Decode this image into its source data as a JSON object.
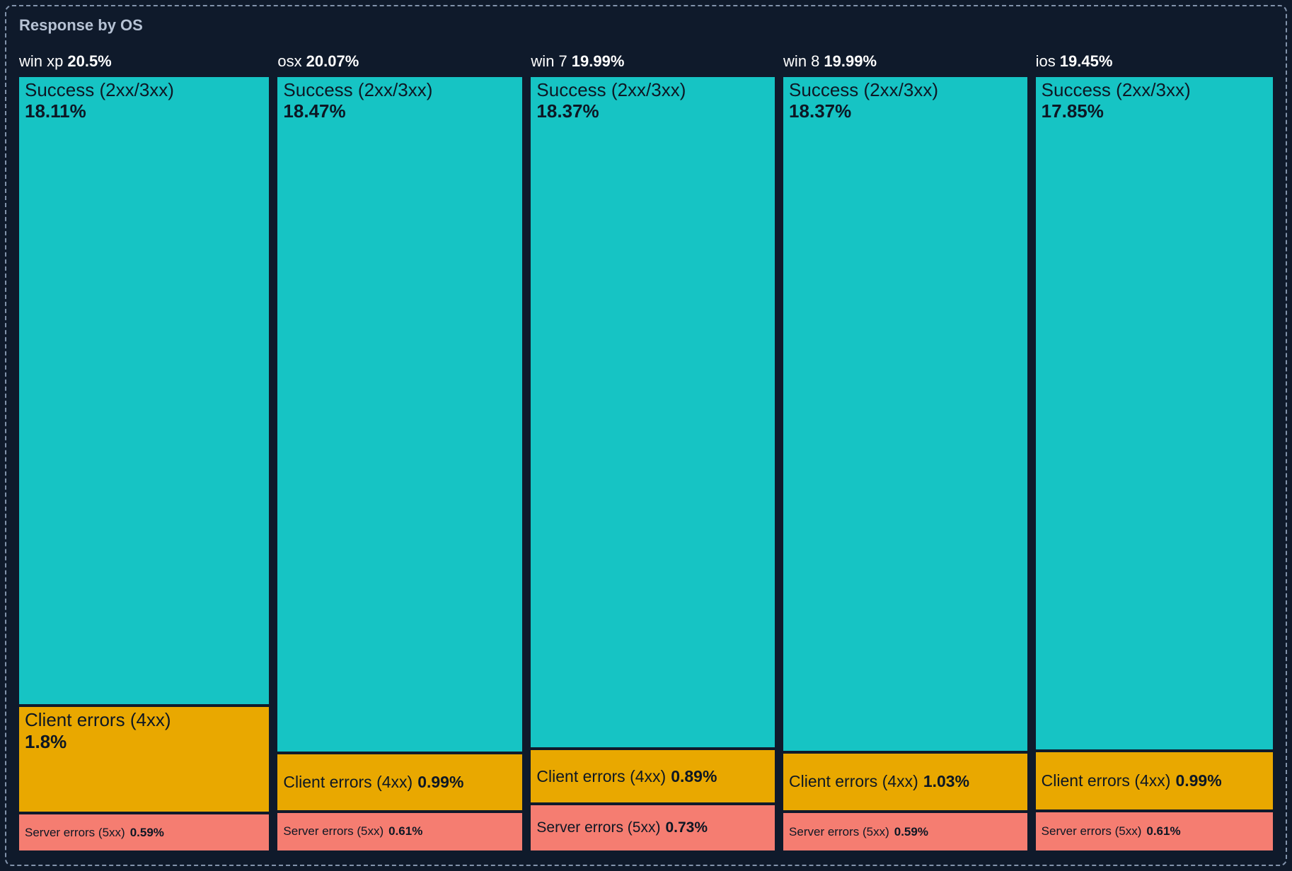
{
  "panel": {
    "title": "Response by OS"
  },
  "colors": {
    "background": "#0f1a2b",
    "panel_border": "#8293ab",
    "title_text": "#b6c2d4",
    "header_text": "#ffffff",
    "label_text": "#0d1724",
    "success": "#16c4c4",
    "client_errors": "#e9a800",
    "server_errors": "#f57d71"
  },
  "chart_data": {
    "type": "treemap",
    "title": "Response by OS",
    "group_by": "OS",
    "unit": "%",
    "legend": false,
    "columns": [
      {
        "os": "win xp",
        "total": 20.5,
        "total_label": "20.5%",
        "segments": [
          {
            "label": "Success (2xx/3xx)",
            "value": 18.11,
            "value_label": "18.11%",
            "color": "#16c4c4"
          },
          {
            "label": "Client errors (4xx)",
            "value": 1.8,
            "value_label": "1.8%",
            "color": "#e9a800"
          },
          {
            "label": "Server errors (5xx)",
            "value": 0.59,
            "value_label": "0.59%",
            "color": "#f57d71"
          }
        ]
      },
      {
        "os": "osx",
        "total": 20.07,
        "total_label": "20.07%",
        "segments": [
          {
            "label": "Success (2xx/3xx)",
            "value": 18.47,
            "value_label": "18.47%",
            "color": "#16c4c4"
          },
          {
            "label": "Client errors (4xx)",
            "value": 0.99,
            "value_label": "0.99%",
            "color": "#e9a800"
          },
          {
            "label": "Server errors (5xx)",
            "value": 0.61,
            "value_label": "0.61%",
            "color": "#f57d71"
          }
        ]
      },
      {
        "os": "win 7",
        "total": 19.99,
        "total_label": "19.99%",
        "segments": [
          {
            "label": "Success (2xx/3xx)",
            "value": 18.37,
            "value_label": "18.37%",
            "color": "#16c4c4"
          },
          {
            "label": "Client errors (4xx)",
            "value": 0.89,
            "value_label": "0.89%",
            "color": "#e9a800"
          },
          {
            "label": "Server errors (5xx)",
            "value": 0.73,
            "value_label": "0.73%",
            "color": "#f57d71"
          }
        ]
      },
      {
        "os": "win 8",
        "total": 19.99,
        "total_label": "19.99%",
        "segments": [
          {
            "label": "Success (2xx/3xx)",
            "value": 18.37,
            "value_label": "18.37%",
            "color": "#16c4c4"
          },
          {
            "label": "Client errors (4xx)",
            "value": 1.03,
            "value_label": "1.03%",
            "color": "#e9a800"
          },
          {
            "label": "Server errors (5xx)",
            "value": 0.59,
            "value_label": "0.59%",
            "color": "#f57d71"
          }
        ]
      },
      {
        "os": "ios",
        "total": 19.45,
        "total_label": "19.45%",
        "segments": [
          {
            "label": "Success (2xx/3xx)",
            "value": 17.85,
            "value_label": "17.85%",
            "color": "#16c4c4"
          },
          {
            "label": "Client errors (4xx)",
            "value": 0.99,
            "value_label": "0.99%",
            "color": "#e9a800"
          },
          {
            "label": "Server errors (5xx)",
            "value": 0.61,
            "value_label": "0.61%",
            "color": "#f57d71"
          }
        ]
      }
    ]
  }
}
